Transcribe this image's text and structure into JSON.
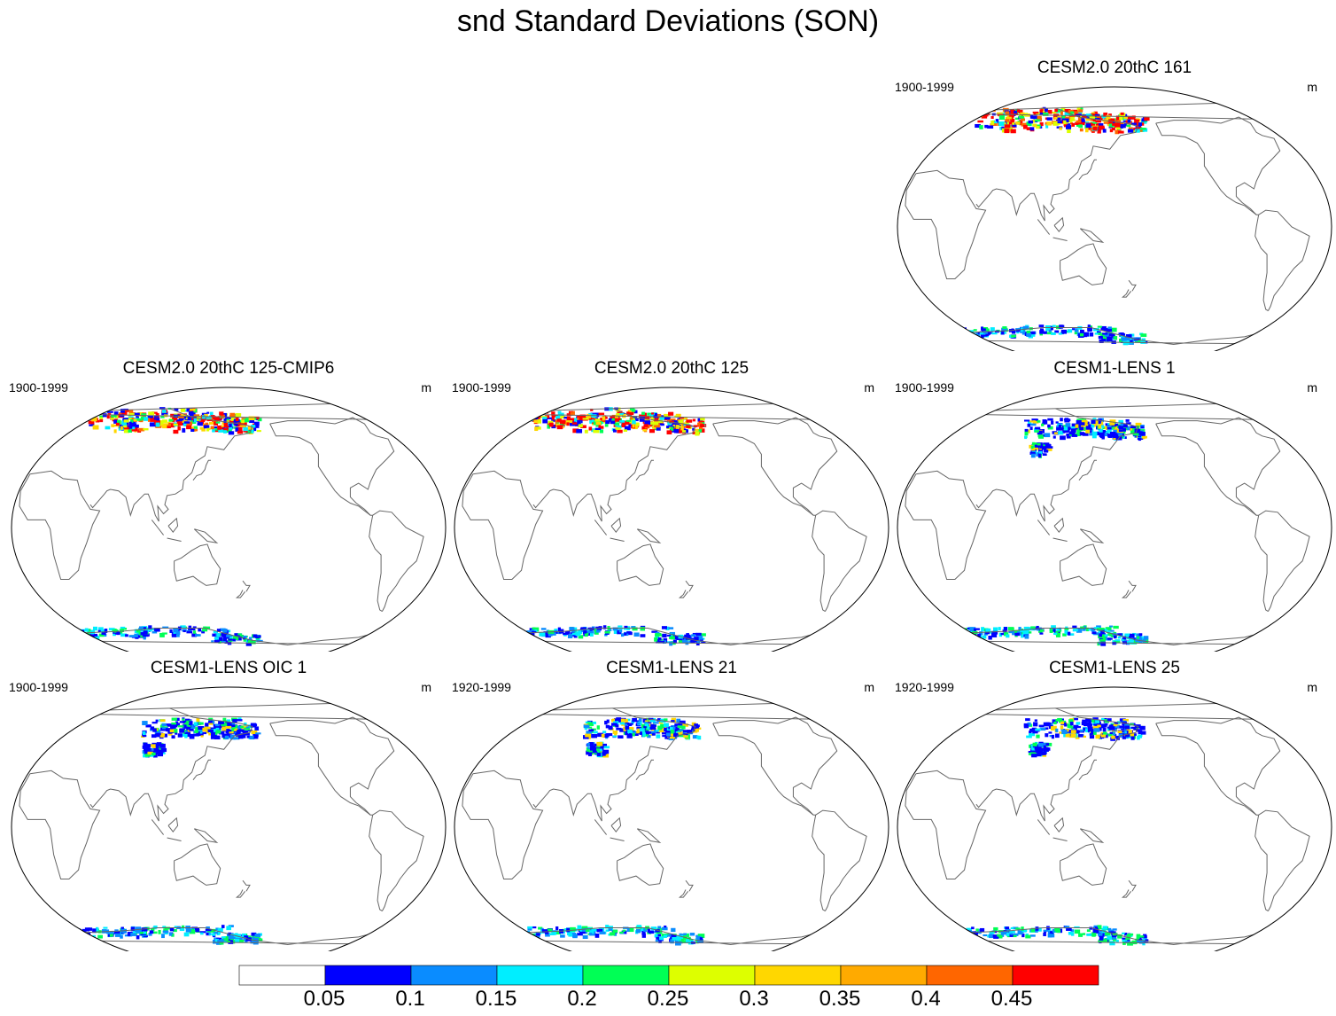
{
  "title": "snd Standard Deviations (SON)",
  "panels": [
    {
      "title": "CESM2.0 20thC 161",
      "years": "1900-1999",
      "units": "m",
      "intensity": "high"
    },
    {
      "title": "CESM2.0 20thC 125-CMIP6",
      "years": "1900-1999",
      "units": "m",
      "intensity": "high"
    },
    {
      "title": "CESM2.0 20thC 125",
      "years": "1900-1999",
      "units": "m",
      "intensity": "high"
    },
    {
      "title": "CESM1-LENS 1",
      "years": "1900-1999",
      "units": "m",
      "intensity": "low"
    },
    {
      "title": "CESM1-LENS OIC 1",
      "years": "1900-1999",
      "units": "m",
      "intensity": "low"
    },
    {
      "title": "CESM1-LENS 21",
      "years": "1920-1999",
      "units": "m",
      "intensity": "low"
    },
    {
      "title": "CESM1-LENS 25",
      "years": "1920-1999",
      "units": "m",
      "intensity": "low"
    }
  ],
  "colorbar": {
    "labels": [
      "0.05",
      "0.1",
      "0.15",
      "0.2",
      "0.25",
      "0.3",
      "0.35",
      "0.4",
      "0.45"
    ],
    "colors": [
      "#ffffff",
      "#0000ff",
      "#0a8cff",
      "#00eeff",
      "#00ff55",
      "#ddff00",
      "#ffd700",
      "#ffaa00",
      "#ff6600",
      "#ff0000"
    ]
  }
}
